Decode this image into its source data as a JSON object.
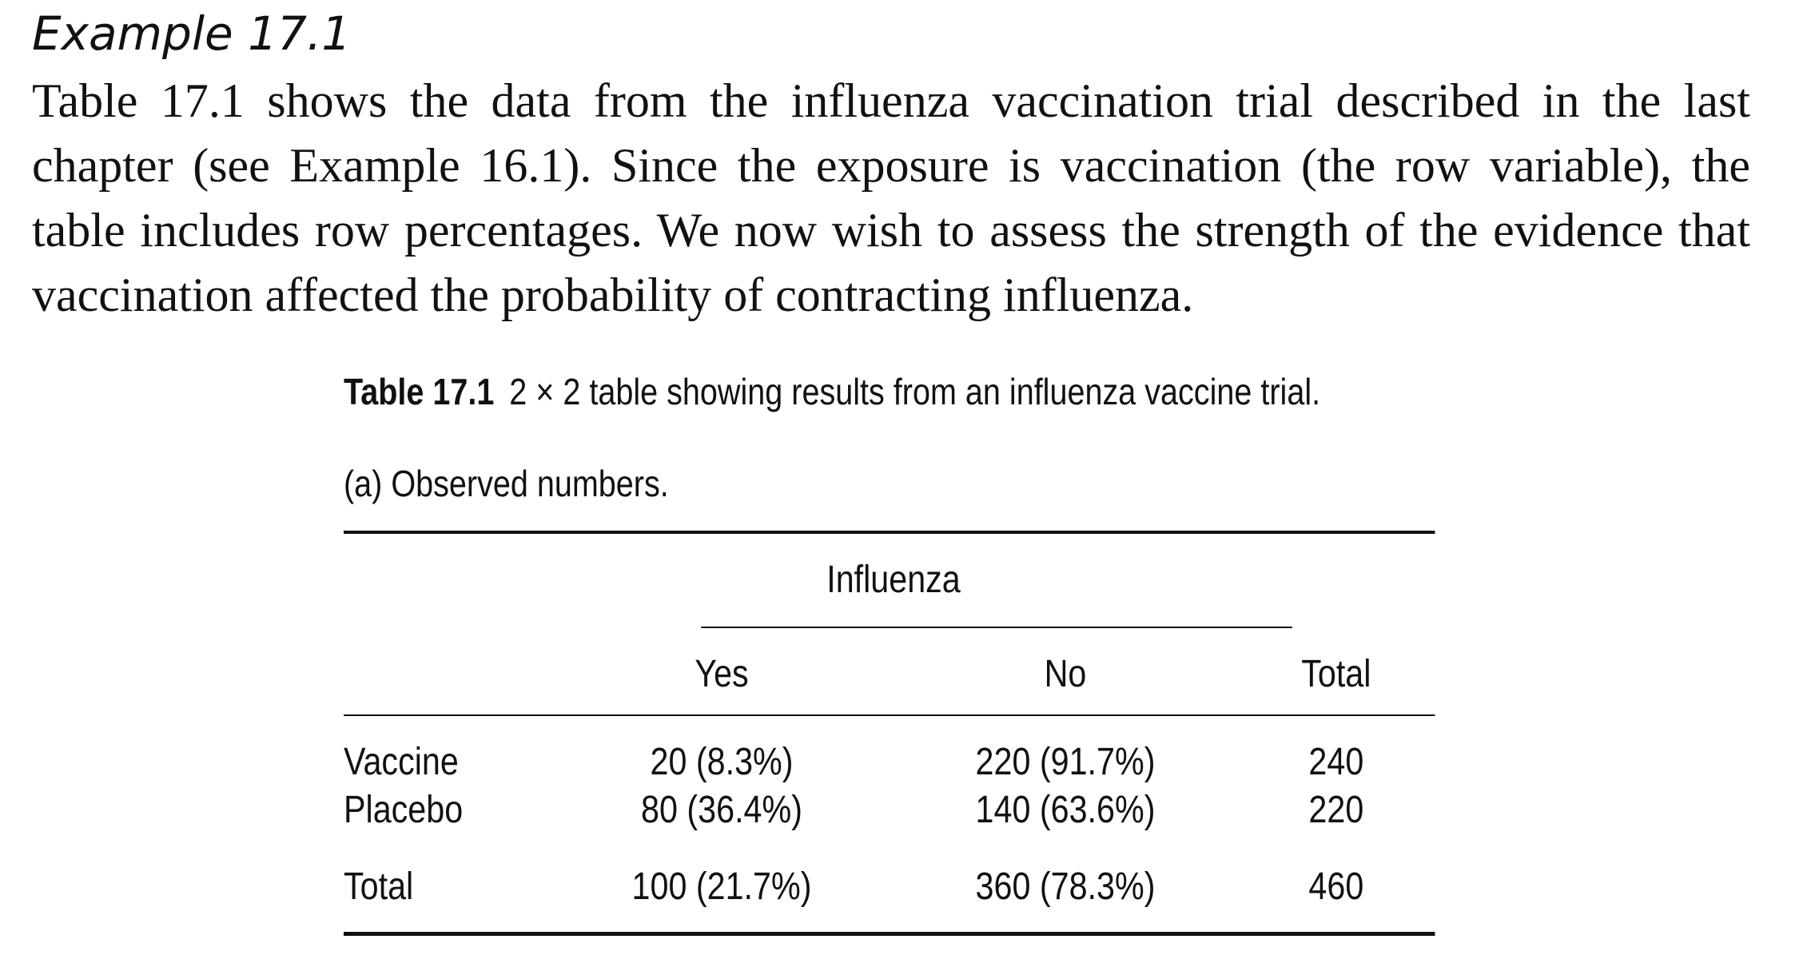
{
  "example": {
    "heading": "Example 17.1",
    "paragraph": "Table 17.1 shows the data from the influenza vaccination trial described in the last chapter (see Example 16.1). Since the exposure is vaccination (the row variable), the table includes row percentages. We now wish to assess the strength of the evidence that vaccination affected the probability of contracting influenza."
  },
  "table": {
    "caption_label": "Table 17.1",
    "caption_text": "2 × 2 table showing results from an influenza vaccine trial.",
    "subcaption": "(a) Observed numbers.",
    "spanner": "Influenza",
    "columns": [
      "Yes",
      "No",
      "Total"
    ],
    "rows": [
      {
        "label": "Vaccine",
        "yes": "20 (8.3%)",
        "no": "220 (91.7%)",
        "total": "240"
      },
      {
        "label": "Placebo",
        "yes": "80 (36.4%)",
        "no": "140 (63.6%)",
        "total": "220"
      }
    ],
    "total_row": {
      "label": "Total",
      "yes": "100 (21.7%)",
      "no": "360 (78.3%)",
      "total": "460"
    }
  }
}
